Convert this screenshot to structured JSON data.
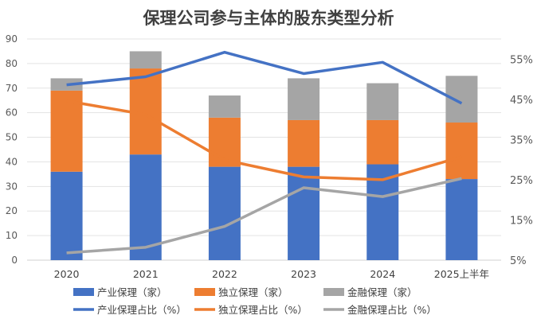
{
  "chart_data": {
    "type": "bar",
    "title": "保理公司参与主体的股东类型分析",
    "categories": [
      "2020",
      "2021",
      "2022",
      "2023",
      "2024",
      "2025上半年"
    ],
    "y_left": {
      "min": 0,
      "max": 90,
      "step": 10,
      "ticks": [
        "0",
        "10",
        "20",
        "30",
        "40",
        "50",
        "60",
        "70",
        "80",
        "90"
      ]
    },
    "y_right": {
      "min": 5,
      "max": 60,
      "ticks": [
        5,
        15,
        25,
        35,
        45,
        55
      ],
      "tick_labels": [
        "5%",
        "15%",
        "25%",
        "35%",
        "45%",
        "55%"
      ]
    },
    "bar_series": [
      {
        "name": "产业保理（家）",
        "color": "#4472C4",
        "values": [
          36,
          43,
          38,
          38,
          39,
          33
        ]
      },
      {
        "name": "独立保理（家）",
        "color": "#ED7D31",
        "values": [
          33,
          35,
          20,
          19,
          18,
          23
        ]
      },
      {
        "name": "金融保理（家）",
        "color": "#A5A5A5",
        "values": [
          5,
          7,
          9,
          17,
          15,
          19
        ]
      }
    ],
    "line_series": [
      {
        "name": "产业保理占比（%）",
        "color": "#4472C4",
        "values": [
          48.6,
          50.6,
          56.7,
          51.4,
          54.2,
          44.0
        ]
      },
      {
        "name": "独立保理占比（%）",
        "color": "#ED7D31",
        "values": [
          44.6,
          41.2,
          29.9,
          25.7,
          25.0,
          30.7
        ]
      },
      {
        "name": "金融保理占比（%）",
        "color": "#A5A5A5",
        "values": [
          6.8,
          8.2,
          13.4,
          23.0,
          20.8,
          25.3
        ]
      }
    ],
    "grid": true,
    "legend": "bottom"
  }
}
